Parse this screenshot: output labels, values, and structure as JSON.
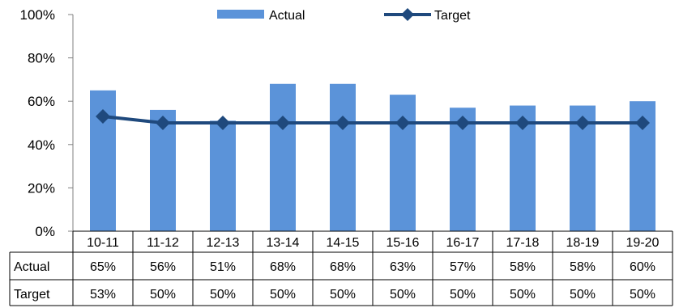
{
  "chart_data": {
    "type": "bar",
    "categories": [
      "10-11",
      "11-12",
      "12-13",
      "13-14",
      "14-15",
      "15-16",
      "16-17",
      "17-18",
      "18-19",
      "19-20"
    ],
    "series": [
      {
        "name": "Actual",
        "type": "bar",
        "values": [
          65,
          56,
          51,
          68,
          68,
          63,
          57,
          58,
          58,
          60
        ],
        "labels": [
          "65%",
          "56%",
          "51%",
          "68%",
          "68%",
          "63%",
          "57%",
          "58%",
          "58%",
          "60%"
        ],
        "color": "#5B93D9"
      },
      {
        "name": "Target",
        "type": "line",
        "values": [
          53,
          50,
          50,
          50,
          50,
          50,
          50,
          50,
          50,
          50
        ],
        "labels": [
          "53%",
          "50%",
          "50%",
          "50%",
          "50%",
          "50%",
          "50%",
          "50%",
          "50%",
          "50%"
        ],
        "color": "#1F497D",
        "marker": "diamond"
      }
    ],
    "ylim": [
      0,
      100
    ],
    "yticks": [
      0,
      20,
      40,
      60,
      80,
      100
    ],
    "ytick_labels": [
      "0%",
      "20%",
      "40%",
      "60%",
      "80%",
      "100%"
    ],
    "title": "",
    "xlabel": "",
    "ylabel": "",
    "legend_position": "top",
    "grid": false,
    "data_table": true
  }
}
